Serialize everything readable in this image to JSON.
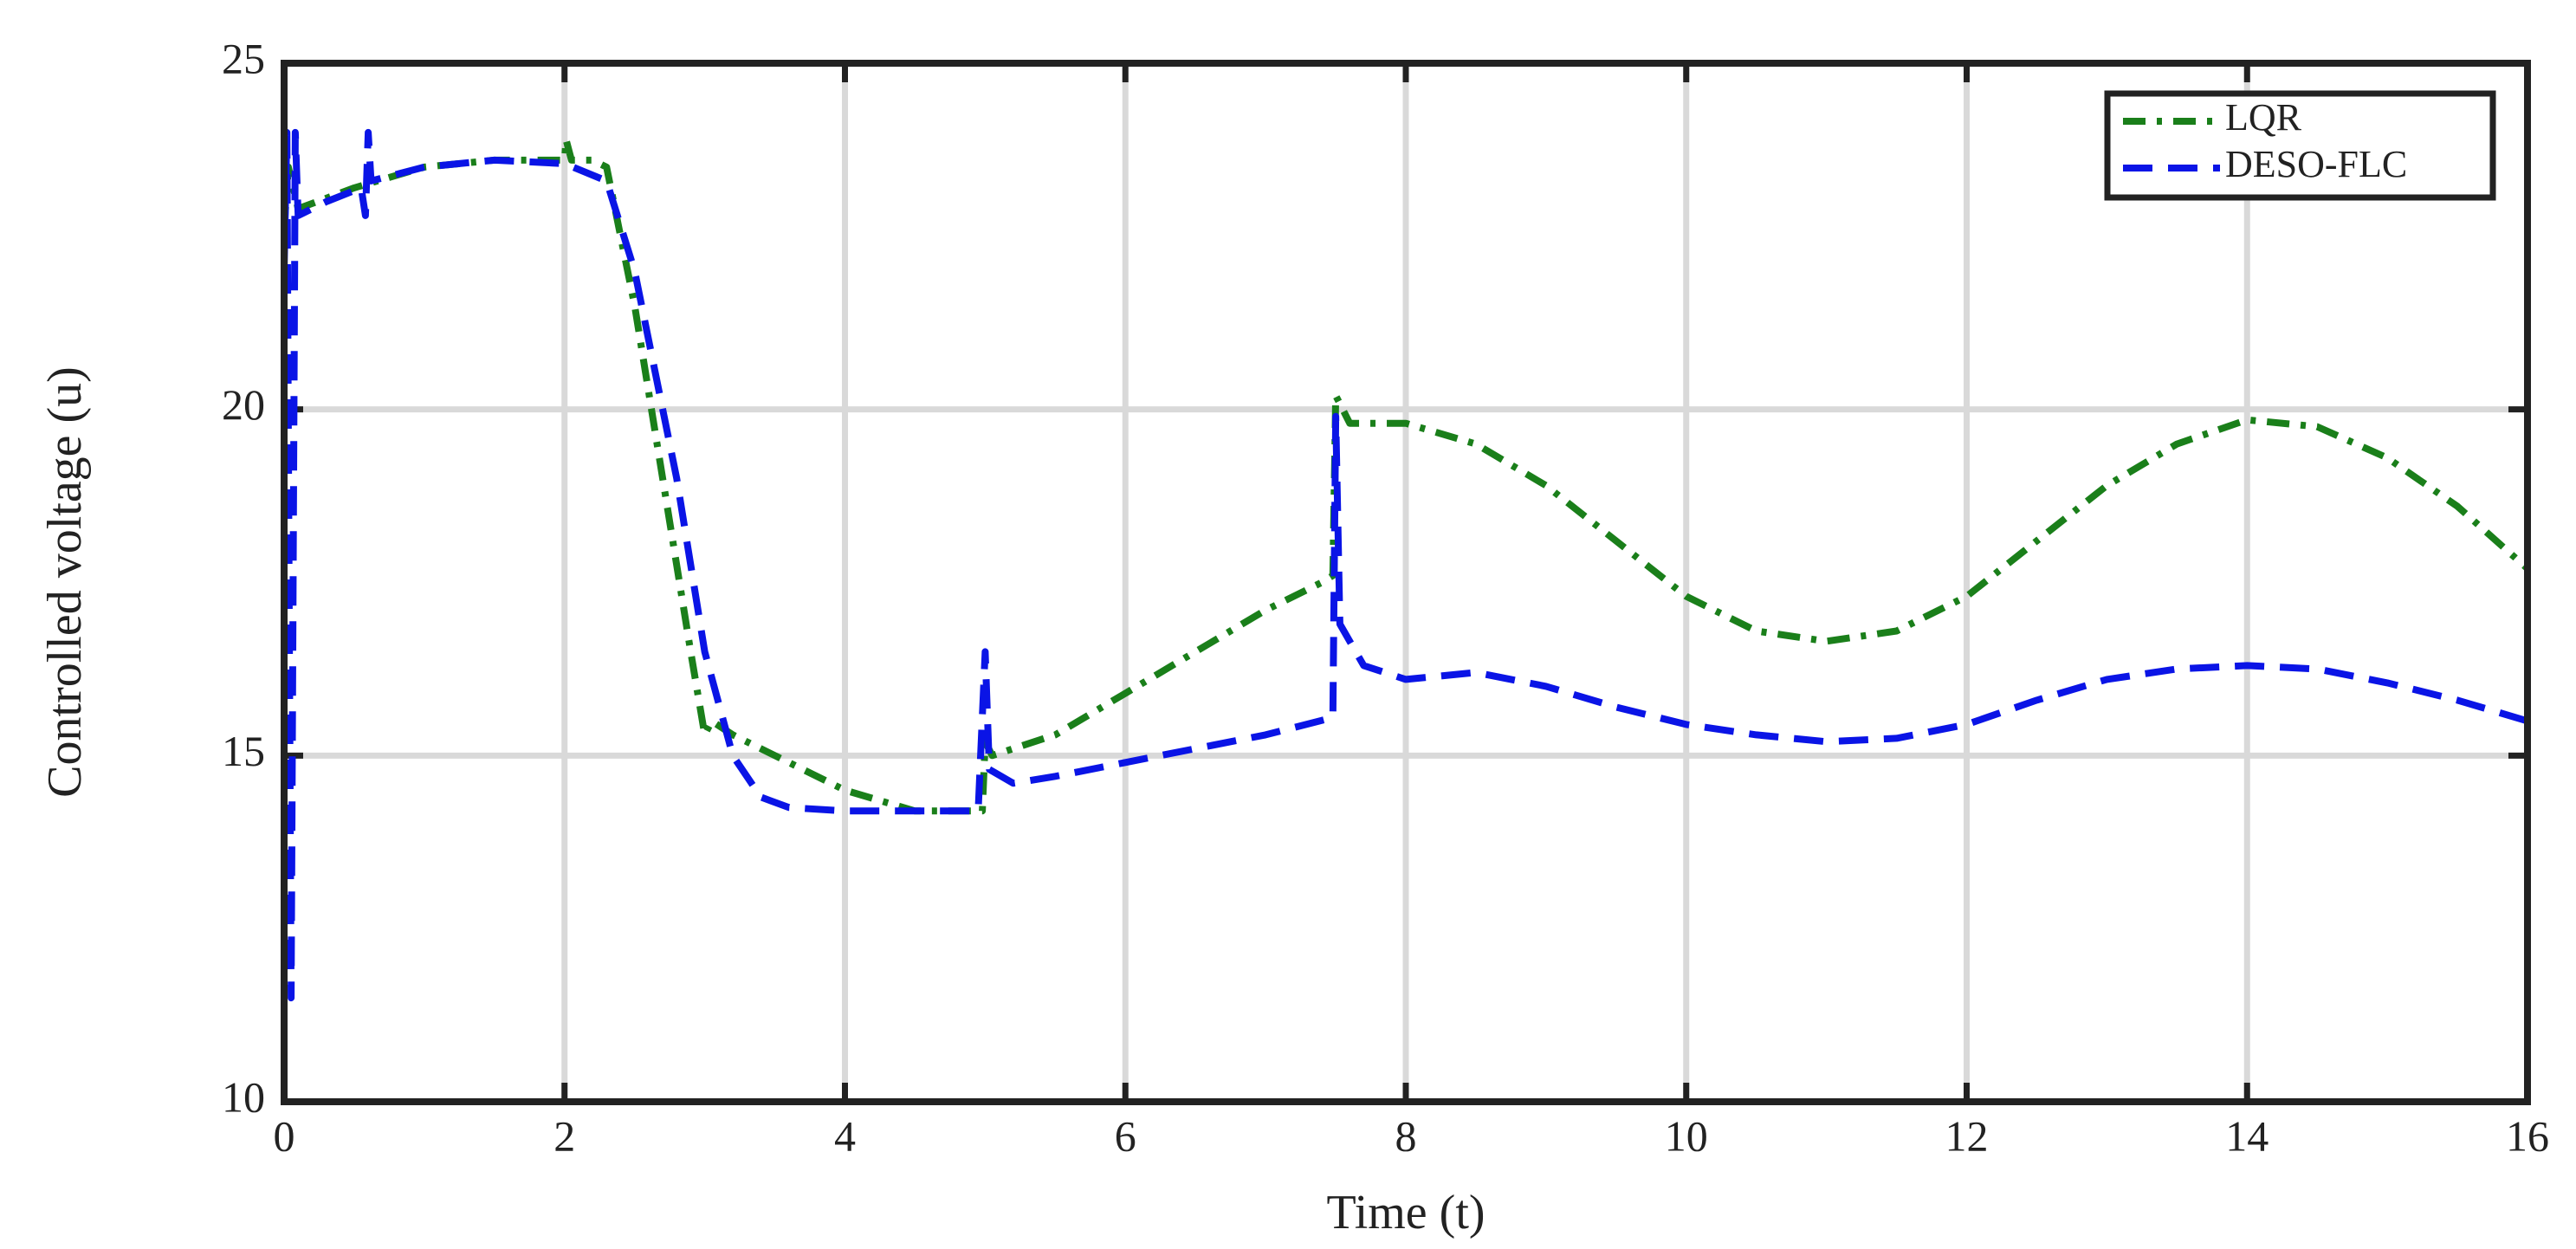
{
  "chart_data": {
    "type": "line",
    "xlabel": "Time (t)",
    "ylabel": "Controlled voltage (u)",
    "xlim": [
      0,
      16
    ],
    "ylim": [
      10,
      25
    ],
    "xticks": [
      0,
      2,
      4,
      6,
      8,
      10,
      12,
      14,
      16
    ],
    "yticks": [
      10,
      15,
      20,
      25
    ],
    "grid": true,
    "legend": "upper right",
    "series": [
      {
        "name": "LQR",
        "color": "#1a7f1a",
        "dash": "dashdot",
        "x": [
          0,
          0.03,
          0.1,
          0.5,
          1,
          1.5,
          2,
          2.01,
          2.05,
          2.2,
          2.3,
          2.5,
          2.7,
          2.9,
          3.0,
          3.05,
          3.2,
          3.5,
          4,
          4.5,
          4.8,
          4.98,
          5.0,
          5.05,
          5.5,
          6,
          6.5,
          7,
          7.4,
          7.48,
          7.5,
          7.55,
          7.6,
          8,
          8.5,
          9,
          9.5,
          10,
          10.5,
          11,
          11.5,
          12,
          12.5,
          13,
          13.5,
          14,
          14.5,
          15,
          15.5,
          16
        ],
        "values": [
          22.6,
          23.5,
          22.9,
          23.2,
          23.5,
          23.6,
          23.6,
          23.9,
          23.6,
          23.6,
          23.5,
          21.5,
          19,
          16.5,
          15.3,
          15.5,
          15.3,
          15.0,
          14.5,
          14.2,
          14.2,
          14.2,
          15.2,
          15.0,
          15.3,
          15.9,
          16.5,
          17.1,
          17.5,
          17.6,
          20.2,
          20.0,
          19.8,
          19.8,
          19.5,
          18.9,
          18.1,
          17.3,
          16.8,
          16.65,
          16.8,
          17.3,
          18.1,
          18.9,
          19.5,
          19.85,
          19.75,
          19.3,
          18.6,
          17.7
        ]
      },
      {
        "name": "DESO-FLC",
        "color": "#0a14e6",
        "dash": "dash",
        "x": [
          0,
          0.02,
          0.05,
          0.08,
          0.1,
          0.3,
          0.55,
          0.58,
          0.6,
          0.62,
          1,
          1.5,
          2,
          2.3,
          2.5,
          2.8,
          3.0,
          3.2,
          3.4,
          3.6,
          4,
          4.5,
          4.95,
          5.0,
          5.03,
          5.2,
          5.5,
          6,
          6.5,
          7,
          7.48,
          7.5,
          7.53,
          7.7,
          8,
          8.5,
          9,
          9.5,
          10,
          10.5,
          11,
          11.5,
          12,
          12.5,
          13,
          13.5,
          14,
          14.5,
          15,
          15.5,
          16
        ],
        "values": [
          22,
          24,
          11.5,
          24,
          22.8,
          23.0,
          23.2,
          22.8,
          24,
          23.3,
          23.5,
          23.6,
          23.55,
          23.3,
          22,
          19,
          16.5,
          15,
          14.4,
          14.25,
          14.2,
          14.2,
          14.2,
          16.5,
          14.8,
          14.6,
          14.7,
          14.9,
          15.1,
          15.3,
          15.55,
          19.9,
          16.9,
          16.3,
          16.1,
          16.2,
          16.0,
          15.7,
          15.45,
          15.3,
          15.2,
          15.25,
          15.45,
          15.8,
          16.1,
          16.25,
          16.3,
          16.25,
          16.05,
          15.8,
          15.5
        ]
      }
    ]
  }
}
